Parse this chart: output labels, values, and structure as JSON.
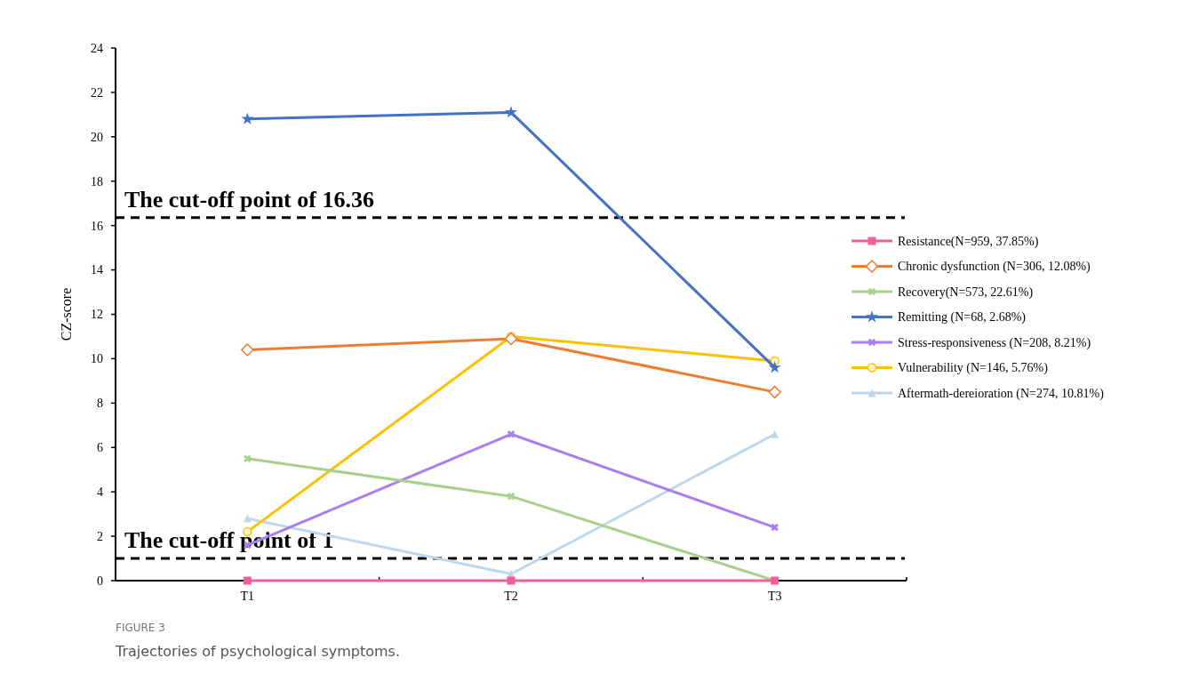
{
  "chart_data": {
    "type": "line",
    "ylabel": "CZ-score",
    "categories": [
      "T1",
      "T2",
      "T3"
    ],
    "ylim": [
      0,
      24
    ],
    "yticks": [
      0,
      2,
      4,
      6,
      8,
      10,
      12,
      14,
      16,
      18,
      20,
      22,
      24
    ],
    "grid": false,
    "legend": "right",
    "series": [
      {
        "name": "Resistance(N=959, 37.85%)",
        "color": "#f0609a",
        "marker": "square",
        "values": [
          0,
          0,
          0
        ]
      },
      {
        "name": "Chronic dysfunction (N=306, 12.08%)",
        "color": "#ed7d31",
        "marker": "diamond",
        "values": [
          10.4,
          10.9,
          8.5
        ]
      },
      {
        "name": "Recovery(N=573, 22.61%)",
        "color": "#a9d18e",
        "marker": "cross",
        "values": [
          5.5,
          3.8,
          0
        ]
      },
      {
        "name": "Remitting (N=68, 2.68%)",
        "color": "#4472c4",
        "marker": "star",
        "values": [
          20.8,
          21.1,
          9.6
        ]
      },
      {
        "name": "Stress-responsiveness (N=208, 8.21%)",
        "color": "#a97ff0",
        "marker": "cross",
        "values": [
          1.6,
          6.6,
          2.4
        ]
      },
      {
        "name": "Vulnerability (N=146, 5.76%)",
        "color": "#ffc000",
        "marker": "circle",
        "values": [
          2.2,
          11.0,
          9.9
        ]
      },
      {
        "name": "Aftermath-dereioration (N=274, 10.81%)",
        "color": "#bdd7ee",
        "marker": "triangle",
        "values": [
          2.8,
          0.3,
          6.6
        ]
      }
    ],
    "ref_lines": [
      {
        "axis": "y",
        "value": 16.36,
        "label": "The cut-off point of 16.36",
        "color": "#000000",
        "line_style": "dashed"
      },
      {
        "axis": "y",
        "value": 1,
        "label": "The cut-off point of 1",
        "color": "#000000",
        "line_style": "dashed"
      }
    ],
    "annotations": [
      "FIGURE 3",
      "Trajectories of psychological symptoms."
    ]
  }
}
